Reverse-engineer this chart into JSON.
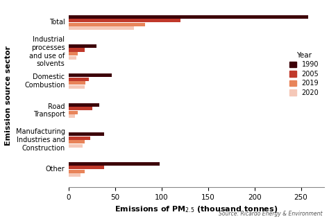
{
  "categories": [
    "Total",
    "Industrial\nprocesses\nand use of\nsolvents",
    "Domestic\nCombustion",
    "Road\nTransport",
    "Manufacturing\nIndustries and\nConstruction",
    "Other"
  ],
  "years": [
    "1990",
    "2005",
    "2019",
    "2020"
  ],
  "colors": [
    "#3d0008",
    "#c0392b",
    "#e8845a",
    "#f5c8b8"
  ],
  "values": [
    [
      258,
      120,
      82,
      70
    ],
    [
      30,
      17,
      10,
      8
    ],
    [
      46,
      22,
      18,
      17
    ],
    [
      33,
      25,
      10,
      7
    ],
    [
      38,
      23,
      17,
      15
    ],
    [
      98,
      38,
      17,
      13
    ]
  ],
  "xlabel": "Emissions of PM$_{2.5}$ (thousand tonnes)",
  "ylabel": "Emission source sector",
  "source": "Source: Ricardo Energy & Environment",
  "xlim": [
    0,
    275
  ],
  "xticks": [
    0,
    50,
    100,
    150,
    200,
    250
  ],
  "legend_title": "Year",
  "background_color": "#ffffff",
  "figsize": [
    4.74,
    3.16
  ],
  "dpi": 100
}
